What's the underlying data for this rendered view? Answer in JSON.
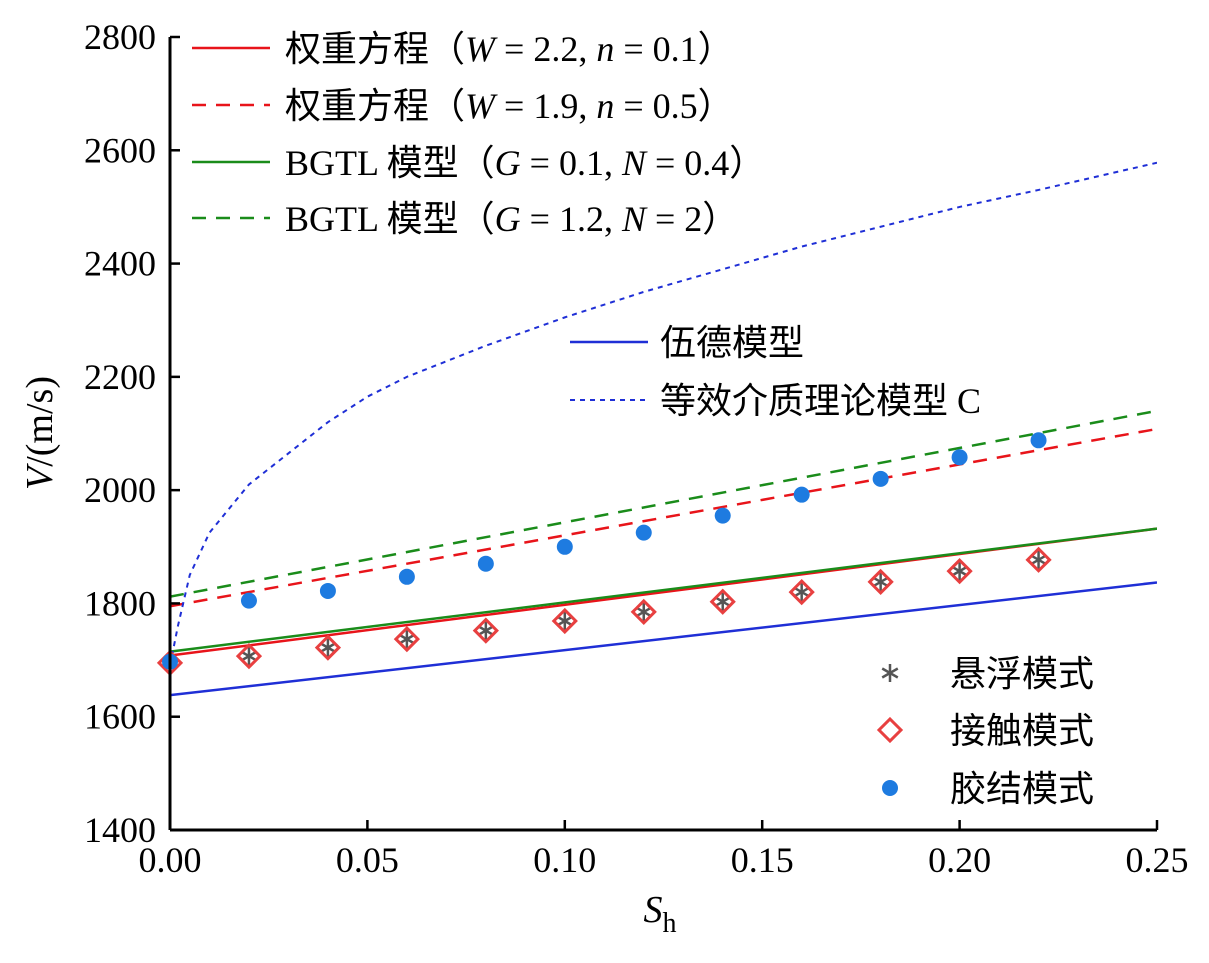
{
  "chart_data": {
    "type": "line",
    "xlabel": "S",
    "xlabel_sub": "h",
    "ylabel_var": "V",
    "ylabel_unit": "/(m/s)",
    "xlim": [
      0,
      0.25
    ],
    "ylim": [
      1400,
      2800
    ],
    "x_ticks": [
      0,
      0.05,
      0.1,
      0.15,
      0.2,
      0.25
    ],
    "x_tick_labels": [
      "0.00",
      "0.05",
      "0.10",
      "0.15",
      "0.20",
      "0.25"
    ],
    "y_ticks": [
      1400,
      1600,
      1800,
      2000,
      2200,
      2400,
      2600,
      2800
    ],
    "y_tick_labels": [
      "1400",
      "1600",
      "1800",
      "2000",
      "2200",
      "2400",
      "2600",
      "2800"
    ],
    "grid": false,
    "legend_placement": "top-left",
    "colors": {
      "red": "#e8141a",
      "green": "#1a8c1a",
      "blue": "#1f2fd6",
      "marker_blue": "#1e7be0",
      "marker_red": "#e84040",
      "star": "#555555"
    },
    "series": [
      {
        "name": "权重方程（W = 2.2, n = 0.1）",
        "legend_prefix": "权重方程（",
        "legend_params": [
          [
            "W",
            " = 2.2, "
          ],
          [
            "n",
            " = 0.1"
          ]
        ],
        "legend_suffix": "）",
        "style": "solid",
        "color": "#e8141a",
        "x": [
          0,
          0.25
        ],
        "y": [
          1708,
          1932
        ]
      },
      {
        "name": "权重方程（W = 1.9, n = 0.5）",
        "legend_prefix": "权重方程（",
        "legend_params": [
          [
            "W",
            " = 1.9, "
          ],
          [
            "n",
            " = 0.5"
          ]
        ],
        "legend_suffix": "）",
        "style": "dashed",
        "color": "#e8141a",
        "x": [
          0,
          0.25
        ],
        "y": [
          1795,
          2108
        ]
      },
      {
        "name": "BGTL 模型（G = 0.1, N = 0.4）",
        "legend_prefix": "BGTL 模型（",
        "legend_params": [
          [
            "G",
            " = 0.1, "
          ],
          [
            "N",
            " = 0.4"
          ]
        ],
        "legend_suffix": "）",
        "style": "solid",
        "color": "#1a8c1a",
        "x": [
          0,
          0.25
        ],
        "y": [
          1715,
          1932
        ]
      },
      {
        "name": "BGTL 模型（G = 1.2, N = 2）",
        "legend_prefix": "BGTL 模型（",
        "legend_params": [
          [
            "G",
            " = 1.2, "
          ],
          [
            "N",
            " = 2"
          ]
        ],
        "legend_suffix": "）",
        "style": "dashed",
        "color": "#1a8c1a",
        "x": [
          0,
          0.25
        ],
        "y": [
          1812,
          2140
        ]
      },
      {
        "name": "伍德模型",
        "style": "solid",
        "color": "#1f2fd6",
        "x": [
          0,
          0.25
        ],
        "y": [
          1638,
          1837
        ]
      },
      {
        "name": "等效介质理论模型 C",
        "style": "dotted",
        "color": "#1f2fd6",
        "x": [
          0,
          0.002,
          0.005,
          0.01,
          0.02,
          0.03,
          0.04,
          0.05,
          0.06,
          0.08,
          0.1,
          0.12,
          0.14,
          0.16,
          0.18,
          0.2,
          0.22,
          0.25
        ],
        "y": [
          1690,
          1760,
          1850,
          1925,
          2010,
          2065,
          2120,
          2165,
          2200,
          2255,
          2305,
          2350,
          2390,
          2430,
          2465,
          2500,
          2530,
          2578
        ]
      }
    ],
    "markers": [
      {
        "name": "悬浮模式",
        "symbol": "star",
        "color": "#555555",
        "x": [
          0,
          0.02,
          0.04,
          0.06,
          0.08,
          0.1,
          0.12,
          0.14,
          0.16,
          0.18,
          0.2,
          0.22
        ],
        "y": [
          1695,
          1707,
          1722,
          1737,
          1752,
          1769,
          1785,
          1803,
          1820,
          1838,
          1857,
          1877
        ]
      },
      {
        "name": "接触模式",
        "symbol": "diamond",
        "color": "#e84040",
        "x": [
          0,
          0.02,
          0.04,
          0.06,
          0.08,
          0.1,
          0.12,
          0.14,
          0.16,
          0.18,
          0.2,
          0.22
        ],
        "y": [
          1695,
          1707,
          1722,
          1737,
          1752,
          1769,
          1785,
          1803,
          1820,
          1838,
          1857,
          1877
        ]
      },
      {
        "name": "胶结模式",
        "symbol": "circle",
        "color": "#1e7be0",
        "x": [
          0,
          0.02,
          0.04,
          0.06,
          0.08,
          0.1,
          0.12,
          0.14,
          0.16,
          0.18,
          0.2,
          0.22
        ],
        "y": [
          1697,
          1805,
          1822,
          1847,
          1870,
          1900,
          1925,
          1955,
          1992,
          2020,
          2058,
          2088
        ]
      }
    ]
  }
}
